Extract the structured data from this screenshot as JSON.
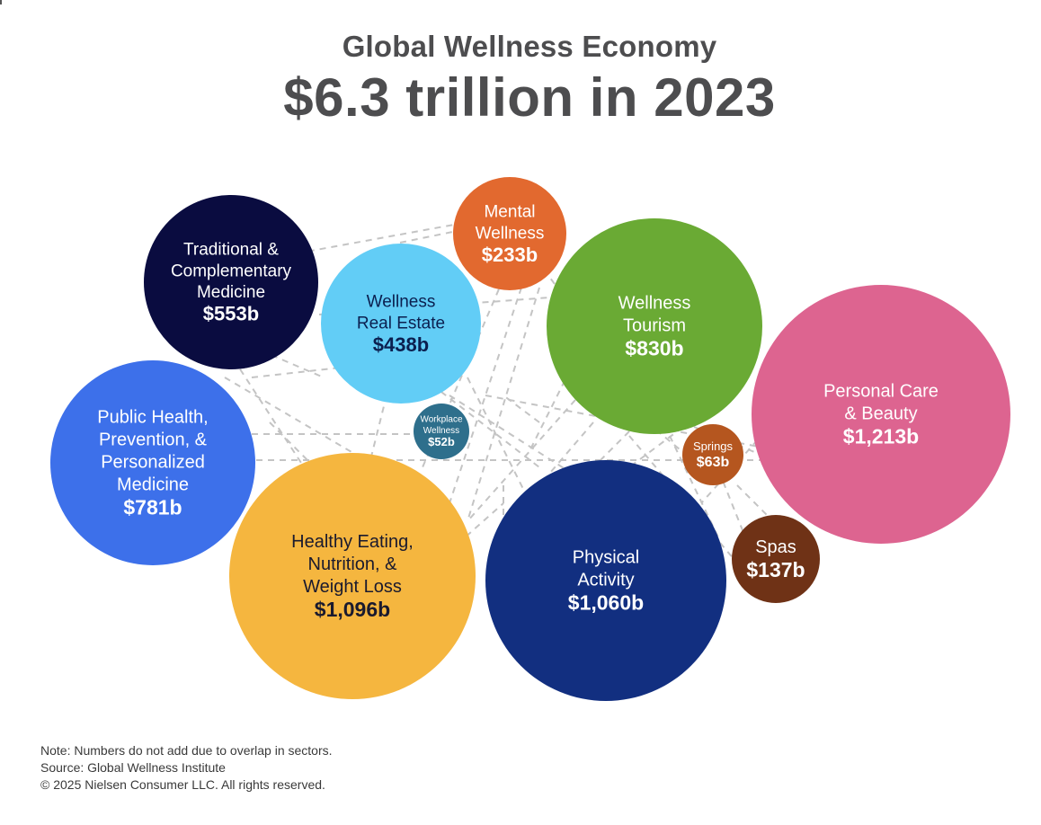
{
  "header": {
    "title": "Global Wellness Economy",
    "headline": "$6.3 trillion in 2023"
  },
  "chart_data": {
    "type": "bubble",
    "unit": "billion USD",
    "sectors": [
      {
        "key": "traditional",
        "label_lines": [
          "Traditional &",
          "Complementary",
          "Medicine"
        ],
        "value_label": "$553b",
        "value": 553,
        "color": "#0a0c40",
        "text_color": "#ffffff"
      },
      {
        "key": "mental",
        "label_lines": [
          "Mental",
          "Wellness"
        ],
        "value_label": "$233b",
        "value": 233,
        "color": "#e2692f",
        "text_color": "#ffffff"
      },
      {
        "key": "real-estate",
        "label_lines": [
          "Wellness",
          "Real Estate"
        ],
        "value_label": "$438b",
        "value": 438,
        "color": "#62cdf6",
        "text_color": "#0b1f4f"
      },
      {
        "key": "tourism",
        "label_lines": [
          "Wellness",
          "Tourism"
        ],
        "value_label": "$830b",
        "value": 830,
        "color": "#6aaa34",
        "text_color": "#ffffff"
      },
      {
        "key": "personal-care",
        "label_lines": [
          "Personal Care",
          "& Beauty"
        ],
        "value_label": "$1,213b",
        "value": 1213,
        "color": "#dd6490",
        "text_color": "#ffffff"
      },
      {
        "key": "public-health",
        "label_lines": [
          "Public Health,",
          "Prevention, &",
          "Personalized",
          "Medicine"
        ],
        "value_label": "$781b",
        "value": 781,
        "color": "#3d70ea",
        "text_color": "#ffffff"
      },
      {
        "key": "workplace",
        "label_lines": [
          "Workplace",
          "Wellness"
        ],
        "value_label": "$52b",
        "value": 52,
        "color": "#2e6f8c",
        "text_color": "#ffffff"
      },
      {
        "key": "springs",
        "label_lines": [
          "Springs"
        ],
        "value_label": "$63b",
        "value": 63,
        "color": "#b5561f",
        "text_color": "#ffffff"
      },
      {
        "key": "healthy-eating",
        "label_lines": [
          "Healthy Eating,",
          "Nutrition, &",
          "Weight Loss"
        ],
        "value_label": "$1,096b",
        "value": 1096,
        "color": "#f5b63f",
        "text_color": "#1a1a2e"
      },
      {
        "key": "physical-activity",
        "label_lines": [
          "Physical",
          "Activity"
        ],
        "value_label": "$1,060b",
        "value": 1060,
        "color": "#122f80",
        "text_color": "#ffffff"
      },
      {
        "key": "spas",
        "label_lines": [
          "Spas"
        ],
        "value_label": "$137b",
        "value": 137,
        "color": "#6f3216",
        "text_color": "#ffffff"
      }
    ]
  },
  "notes": {
    "note": "Note: Numbers do not add due to overlap in sectors.",
    "source": "Source: Global Wellness Institute",
    "copyright": "© 2025 Nielsen Consumer LLC. All rights reserved."
  }
}
